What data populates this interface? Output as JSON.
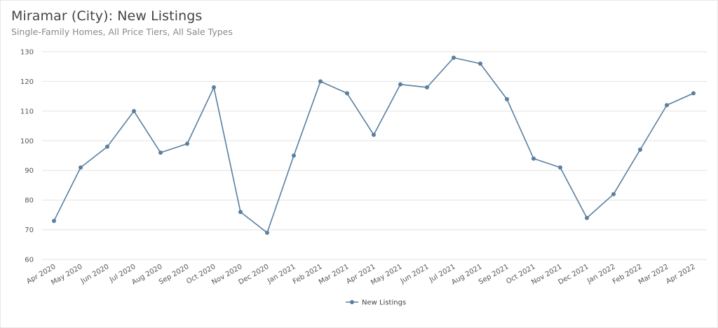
{
  "header": {
    "title": "Miramar (City): New Listings",
    "subtitle": "Single-Family Homes, All Price Tiers, All Sale Types"
  },
  "chart_data": {
    "type": "line",
    "title": "Miramar (City): New Listings",
    "subtitle": "Single-Family Homes, All Price Tiers, All Sale Types",
    "xlabel": "",
    "ylabel": "",
    "ylim": [
      60,
      130
    ],
    "yticks": [
      60,
      70,
      80,
      90,
      100,
      110,
      120,
      130
    ],
    "grid": true,
    "legend_position": "bottom-center",
    "categories": [
      "Apr 2020",
      "May 2020",
      "Jun 2020",
      "Jul 2020",
      "Aug 2020",
      "Sep 2020",
      "Oct 2020",
      "Nov 2020",
      "Dec 2020",
      "Jan 2021",
      "Feb 2021",
      "Mar 2021",
      "Apr 2021",
      "May 2021",
      "Jun 2021",
      "Jul 2021",
      "Aug 2021",
      "Sep 2021",
      "Oct 2021",
      "Nov 2021",
      "Dec 2021",
      "Jan 2022",
      "Feb 2022",
      "Mar 2022",
      "Apr 2022"
    ],
    "series": [
      {
        "name": "New Listings",
        "color": "#5a7fa0",
        "values": [
          73,
          91,
          98,
          110,
          96,
          99,
          118,
          76,
          69,
          95,
          120,
          116,
          102,
          119,
          118,
          128,
          126,
          114,
          94,
          91,
          74,
          82,
          97,
          112,
          116
        ]
      }
    ]
  }
}
